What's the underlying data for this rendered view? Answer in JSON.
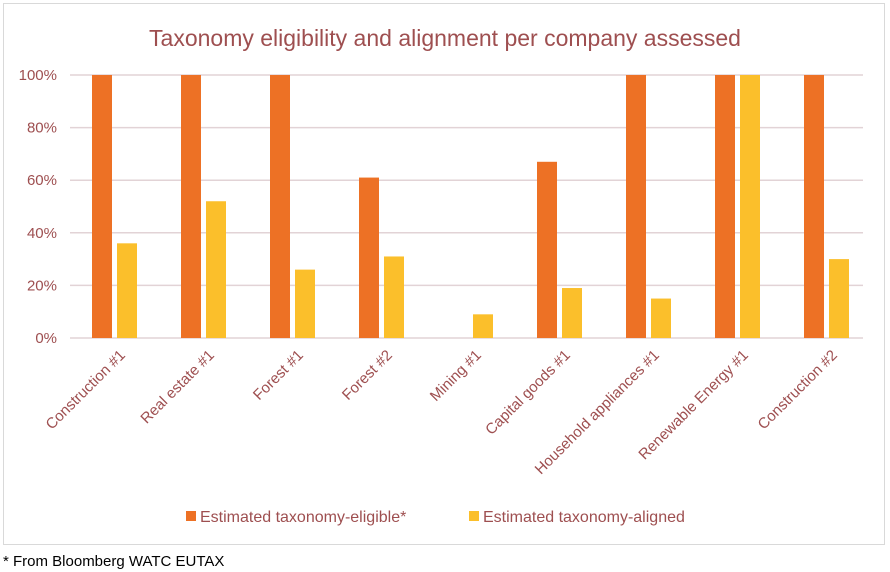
{
  "chart_data": {
    "type": "bar",
    "title": "Taxonomy eligibility and alignment per company assessed",
    "categories": [
      "Construction #1",
      "Real estate #1",
      "Forest #1",
      "Forest #2",
      "Mining #1",
      "Capital goods #1",
      "Household appliances #1",
      "Renewable Energy #1",
      "Construction #2"
    ],
    "series": [
      {
        "name": "Estimated taxonomy-eligible*",
        "color": "#ed7125",
        "values": [
          100,
          100,
          100,
          61,
          0,
          67,
          100,
          100,
          100
        ]
      },
      {
        "name": "Estimated taxonomy-aligned",
        "color": "#fbbf2b",
        "values": [
          36,
          52,
          26,
          31,
          9,
          19,
          15,
          100,
          30
        ]
      }
    ],
    "ylim": [
      0,
      100
    ],
    "yticks": [
      "0%",
      "20%",
      "40%",
      "60%",
      "80%",
      "100%"
    ],
    "grid": true,
    "legend": "bottom",
    "text_color": "#9e4f50"
  },
  "footnote": "* From Bloomberg WATC EUTAX"
}
